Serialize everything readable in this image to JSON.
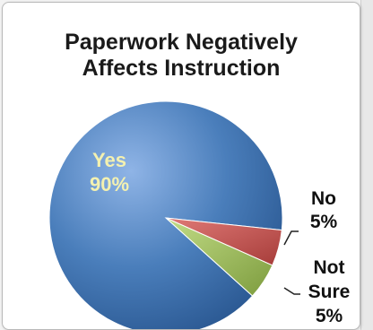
{
  "chart_data": {
    "type": "pie",
    "title_lines": [
      "Paperwork Negatively",
      "Affects Instruction"
    ],
    "slices": [
      {
        "label": "Yes",
        "value": 90,
        "value_label": "90%",
        "color": "#4a7ebb"
      },
      {
        "label": "No",
        "value": 5,
        "value_label": "5%",
        "color": "#c0504d"
      },
      {
        "label": "Not Sure",
        "value_label": "5%",
        "value": 5,
        "color": "#9bbb59"
      }
    ],
    "label_colors": {
      "inside": "#f4f1b0",
      "outside": "#111111"
    }
  }
}
